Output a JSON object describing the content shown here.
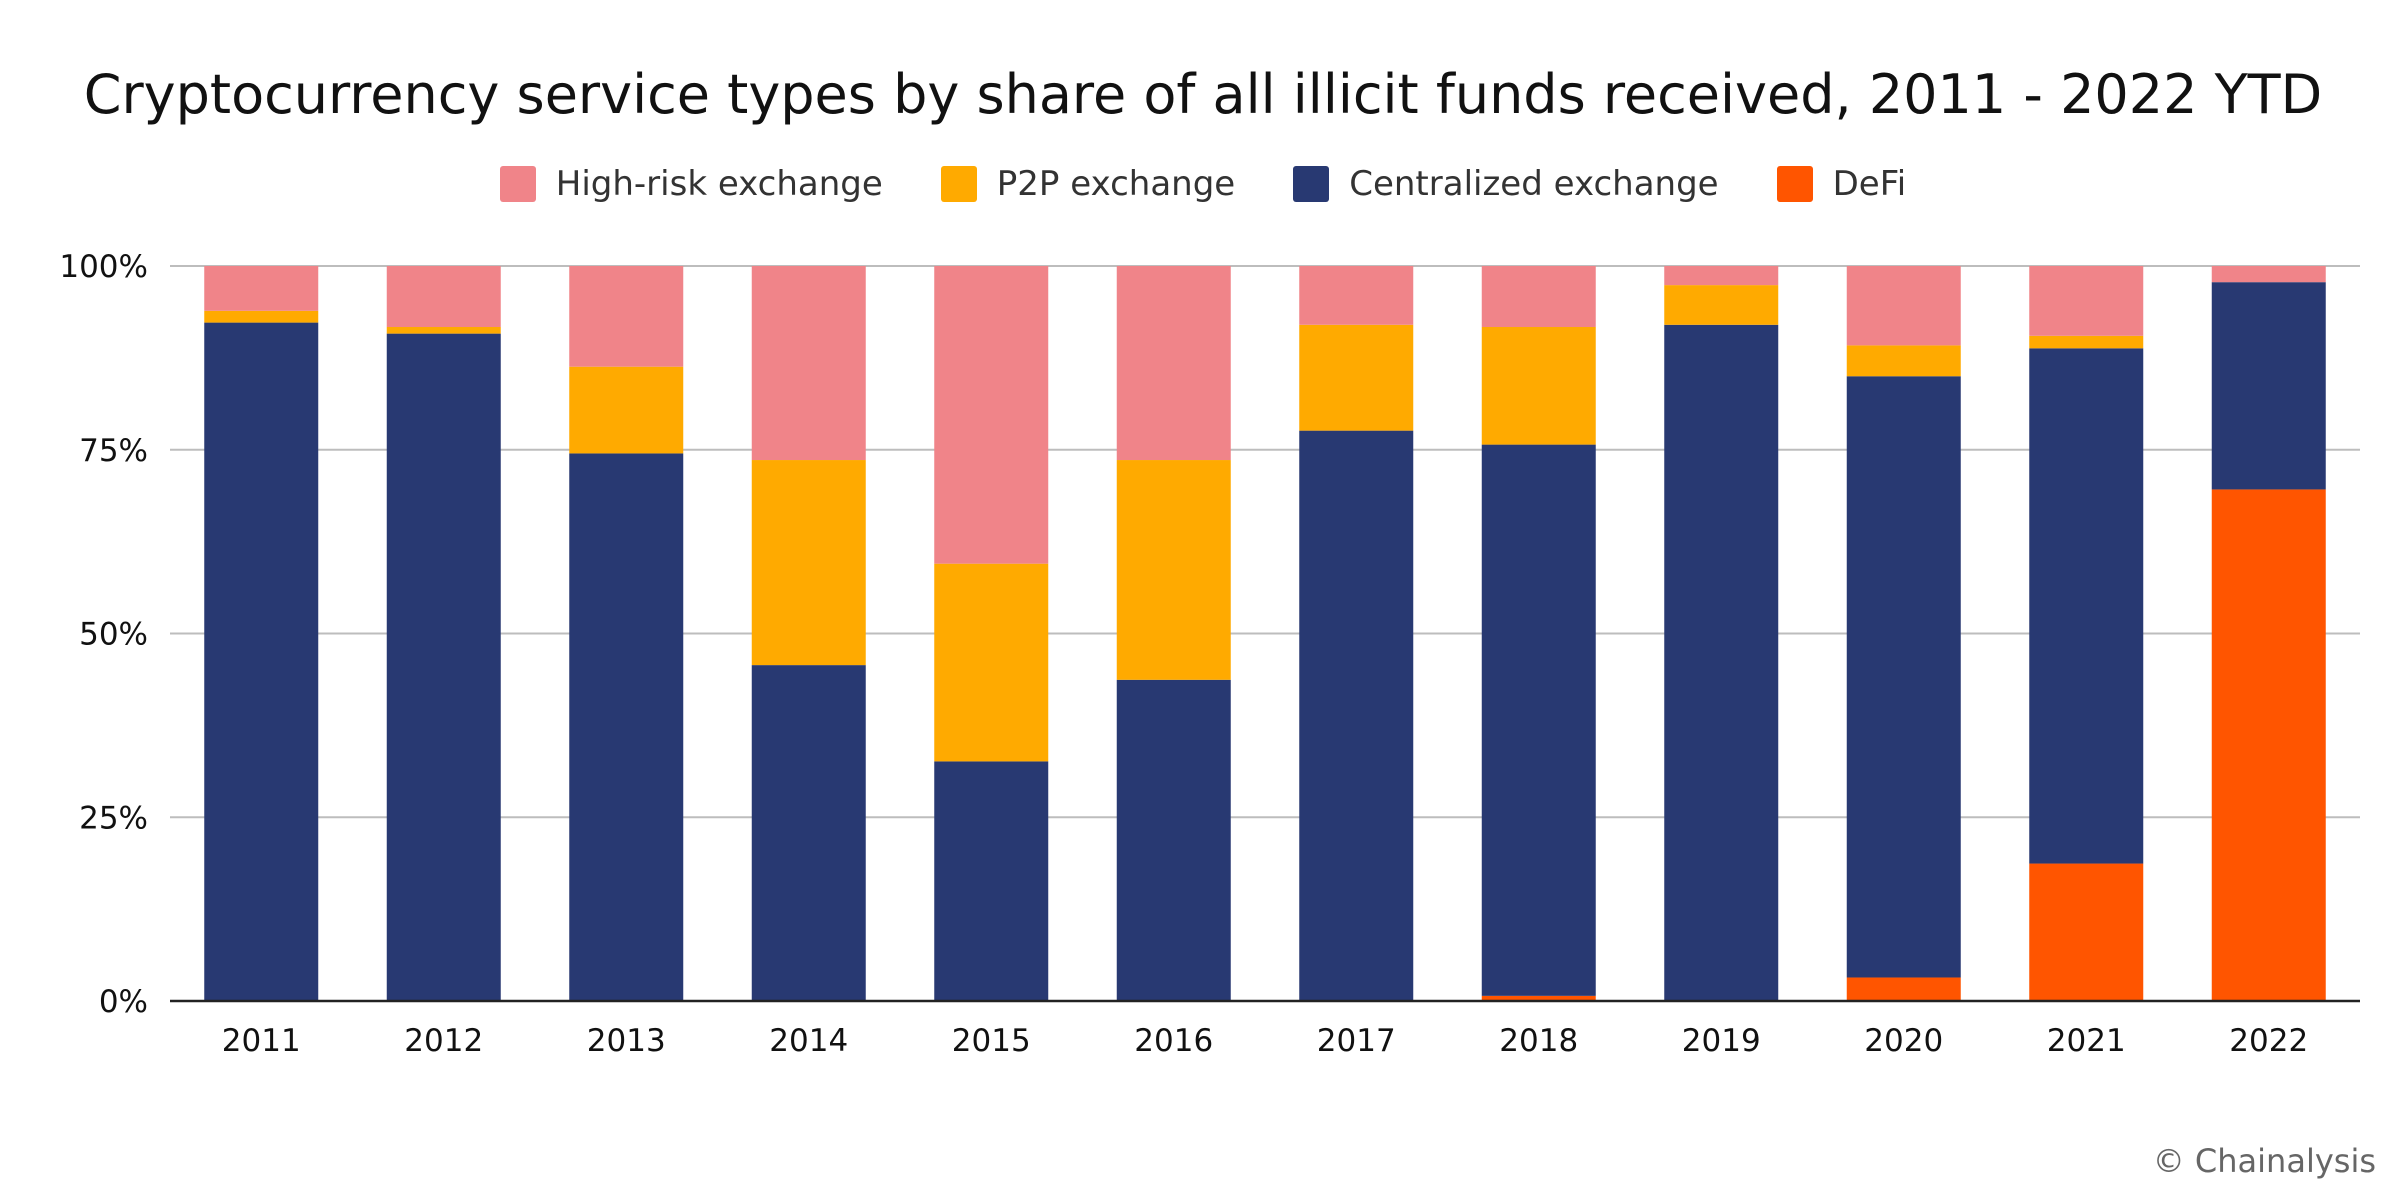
{
  "chart_data": {
    "type": "bar",
    "stacked": true,
    "normalized": true,
    "title": "Cryptocurrency service types by share of all illicit funds received, 2011 - 2022 YTD",
    "xlabel": "",
    "ylabel": "",
    "ylim": [
      0,
      100
    ],
    "yticks": [
      "0%",
      "25%",
      "50%",
      "75%",
      "100%"
    ],
    "ytick_values": [
      0,
      25,
      50,
      75,
      100
    ],
    "grid": true,
    "legend_position": "top",
    "categories": [
      "2011",
      "2012",
      "2013",
      "2014",
      "2015",
      "2016",
      "2017",
      "2018",
      "2019",
      "2020",
      "2021",
      "2022"
    ],
    "series": [
      {
        "name": "DeFi",
        "color": "#ff5500",
        "values": [
          0,
          0,
          0,
          0,
          0,
          0,
          0,
          0.7,
          0,
          3.2,
          18.7,
          69.6
        ]
      },
      {
        "name": "Centralized exchange",
        "color": "#283972",
        "values": [
          92.3,
          90.8,
          74.5,
          45.7,
          32.6,
          43.7,
          77.6,
          75.0,
          92.0,
          81.8,
          70.1,
          28.2
        ]
      },
      {
        "name": "P2P exchange",
        "color": "#ffaa00",
        "values": [
          1.6,
          0.9,
          11.8,
          27.9,
          26.9,
          29.9,
          14.4,
          16.0,
          5.4,
          4.2,
          1.7,
          0
        ]
      },
      {
        "name": "High-risk exchange",
        "color": "#f08489",
        "values": [
          6.1,
          8.3,
          13.7,
          26.4,
          40.5,
          26.4,
          8.0,
          8.3,
          2.6,
          10.8,
          9.5,
          2.2
        ]
      }
    ],
    "legend_order": [
      "High-risk exchange",
      "P2P exchange",
      "Centralized exchange",
      "DeFi"
    ]
  },
  "legend": {
    "items": [
      {
        "label": "High-risk exchange",
        "color": "#f08489"
      },
      {
        "label": "P2P exchange",
        "color": "#ffaa00"
      },
      {
        "label": "Centralized exchange",
        "color": "#283972"
      },
      {
        "label": "DeFi",
        "color": "#ff5500"
      }
    ]
  },
  "footer": {
    "credit": "© Chainalysis"
  }
}
